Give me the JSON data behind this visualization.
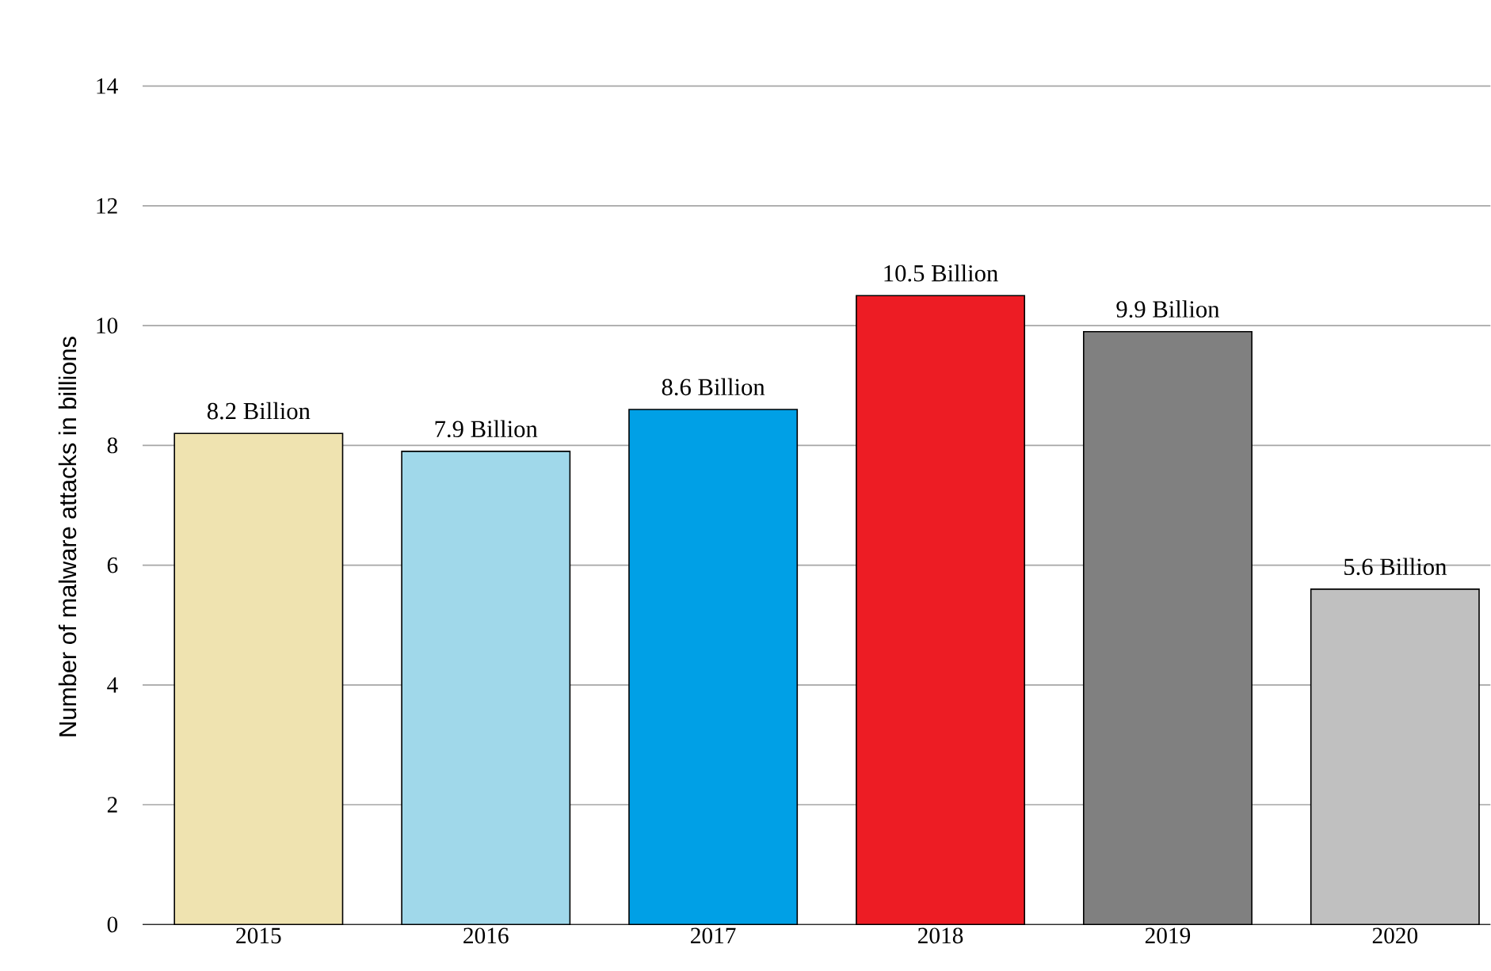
{
  "chart_data": {
    "type": "bar",
    "ylabel": "Number of malware attacks in billions",
    "categories": [
      "2015",
      "2016",
      "2017",
      "2018",
      "2019",
      "2020"
    ],
    "values": [
      8.2,
      7.9,
      8.6,
      10.5,
      9.9,
      5.6
    ],
    "colors": [
      "#efe3b0",
      "#a0d8ea",
      "#00a0e6",
      "#ed1c24",
      "#808080",
      "#c0c0c0"
    ],
    "value_labels": [
      "8.2 Billion",
      "7.9 Billion",
      "8.6 Billion",
      "10.5 Billion",
      "9.9 Billion",
      "5.6 Billion"
    ],
    "ylim": [
      0,
      14
    ],
    "yticks": [
      0,
      2,
      4,
      6,
      8,
      10,
      12,
      14
    ],
    "grid": "y"
  }
}
